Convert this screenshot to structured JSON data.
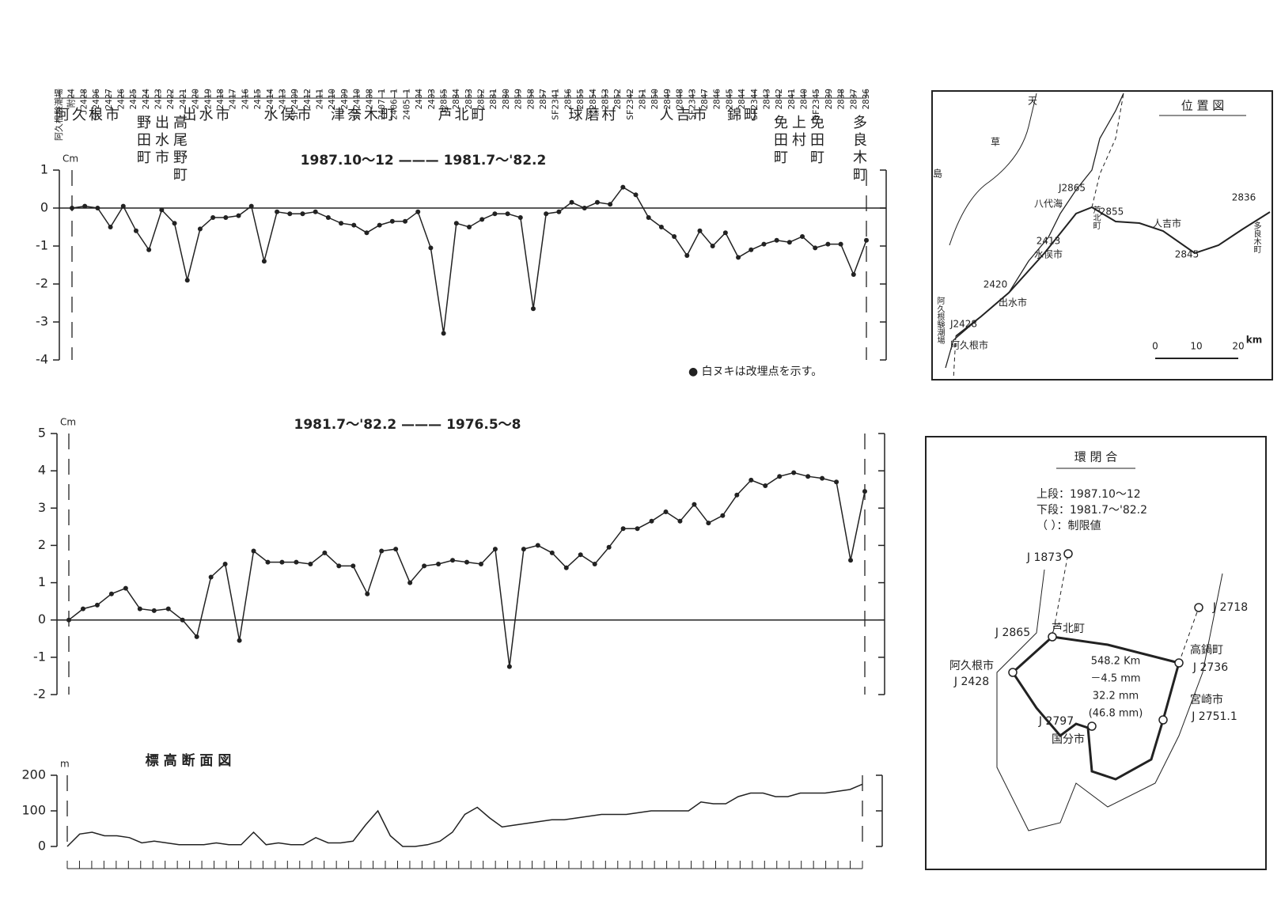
{
  "header": {
    "benchmarks": [
      "阿久根験潮場",
      "附24",
      "J2428",
      "SF2406",
      "2427",
      "2426",
      "2425",
      "2424",
      "2423",
      "2422",
      "2421",
      "2420",
      "2419",
      "2418",
      "2417",
      "2416",
      "2415",
      "2414",
      "2413",
      "SF2409",
      "2412",
      "2411",
      "2410",
      "2409",
      "SF2410",
      "2408",
      "2407-1",
      "2406-1",
      "2405-1",
      "2404",
      "2403",
      "J2865",
      "2884",
      "2863",
      "2862",
      "2881",
      "2880",
      "2859",
      "2858",
      "2857",
      "SF2341",
      "2856",
      "2855",
      "2854",
      "2853",
      "2852",
      "SF2342",
      "2851",
      "2850",
      "2849",
      "2848",
      "SF2343",
      "2847",
      "2846",
      "2845",
      "2844",
      "SF2344",
      "2843",
      "2842",
      "2841",
      "2840",
      "SF2345",
      "2839",
      "2838",
      "2837",
      "2836"
    ],
    "municipalities": [
      "阿久根市",
      "野田町",
      "出水市",
      "高尾野町",
      "出水市",
      "水俣市",
      "津奈木町",
      "芦北町",
      "球磨村",
      "人吉市",
      "錦町",
      "免田町",
      "上村",
      "免田町",
      "多良木町"
    ]
  },
  "chart_data": [
    {
      "type": "line",
      "title": "1987.10～12 ——— 1981.7～'82.2",
      "y_label": "Cm",
      "note": "● 白ヌキは改埋点を示す。",
      "values": [
        0,
        0.05,
        0,
        -0.5,
        0.05,
        -0.6,
        -1.1,
        -0.05,
        -0.4,
        -1.9,
        -0.55,
        -0.25,
        -0.25,
        -0.2,
        0.05,
        -1.4,
        -0.1,
        -0.15,
        -0.15,
        -0.1,
        -0.25,
        -0.4,
        -0.45,
        -0.65,
        -0.45,
        -0.35,
        -0.35,
        -0.1,
        -1.05,
        -3.3,
        -0.4,
        -0.5,
        -0.3,
        -0.15,
        -0.15,
        -0.25,
        -2.65,
        -0.15,
        -0.1,
        0.15,
        0,
        0.15,
        0.1,
        0.55,
        0.35,
        -0.25,
        -0.5,
        -0.75,
        -1.25,
        -0.6,
        -1.0,
        -0.65,
        -1.3,
        -1.1,
        -0.95,
        -0.85,
        -0.9,
        -0.75,
        -1.05,
        -0.95,
        -0.95,
        -1.75,
        -0.85
      ],
      "ylim": [
        -4,
        1
      ],
      "yticks": [
        -4,
        -3,
        -2,
        -1,
        0,
        1
      ],
      "color": "#222"
    },
    {
      "type": "line",
      "title": "1981.7～'82.2 ——— 1976.5～8",
      "y_label": "Cm",
      "values": [
        0,
        0.3,
        0.4,
        0.7,
        0.85,
        0.3,
        0.25,
        0.3,
        0,
        -0.45,
        1.15,
        1.5,
        -0.55,
        1.85,
        1.55,
        1.55,
        1.55,
        1.5,
        1.8,
        1.45,
        1.45,
        0.7,
        1.85,
        1.9,
        1.0,
        1.45,
        1.5,
        1.6,
        1.55,
        1.5,
        1.9,
        -1.25,
        1.9,
        2.0,
        1.8,
        1.4,
        1.75,
        1.5,
        1.95,
        2.45,
        2.45,
        2.65,
        2.9,
        2.65,
        3.1,
        2.6,
        2.8,
        3.35,
        3.75,
        3.6,
        3.85,
        3.95,
        3.85,
        3.8,
        3.7,
        1.6,
        3.45
      ],
      "ylim": [
        -2,
        5
      ],
      "yticks": [
        -2,
        -1,
        0,
        1,
        2,
        3,
        4,
        5
      ],
      "color": "#222"
    },
    {
      "type": "profile",
      "title": "標 高 断 面 図",
      "y_label": "m",
      "values": [
        0,
        35,
        40,
        30,
        30,
        25,
        10,
        15,
        10,
        5,
        5,
        5,
        10,
        5,
        5,
        40,
        5,
        10,
        5,
        5,
        25,
        10,
        10,
        15,
        60,
        100,
        30,
        0,
        0,
        5,
        15,
        40,
        90,
        110,
        80,
        55,
        60,
        65,
        70,
        75,
        75,
        80,
        85,
        90,
        90,
        90,
        95,
        100,
        100,
        100,
        100,
        125,
        120,
        120,
        140,
        150,
        150,
        140,
        140,
        150,
        150,
        150,
        155,
        160,
        175
      ],
      "ylim": [
        0,
        200
      ],
      "yticks": [
        0,
        100,
        200
      ],
      "color": "#222"
    }
  ],
  "location_map": {
    "title": "位 置 図",
    "labels": [
      "J2865",
      "2836",
      "2855",
      "人吉市",
      "2413",
      "水俣市",
      "2845",
      "2420",
      "出水市",
      "J2428",
      "阿久根市",
      "芦北町",
      "多良木町",
      "八代海",
      "天",
      "草",
      "島",
      "阿久根験潮場"
    ],
    "scale": [
      "0",
      "10",
      "20",
      "km"
    ]
  },
  "loop_map": {
    "title": "環 閉 合",
    "legend": [
      "上段：1987.10～12",
      "下段：1981.7～'82.2",
      "（ ）：制限値"
    ],
    "stations": [
      "J 1873",
      "J 2865",
      "芦北町",
      "J 2718",
      "高鍋町",
      "阿久根市",
      "J 2428",
      "J 2736",
      "宮崎市",
      "J 2751.1",
      "J 2797",
      "国分市"
    ],
    "values": [
      "548.2 Km",
      "－4.5 mm",
      "32.2 mm",
      "(46.8 mm)"
    ]
  }
}
